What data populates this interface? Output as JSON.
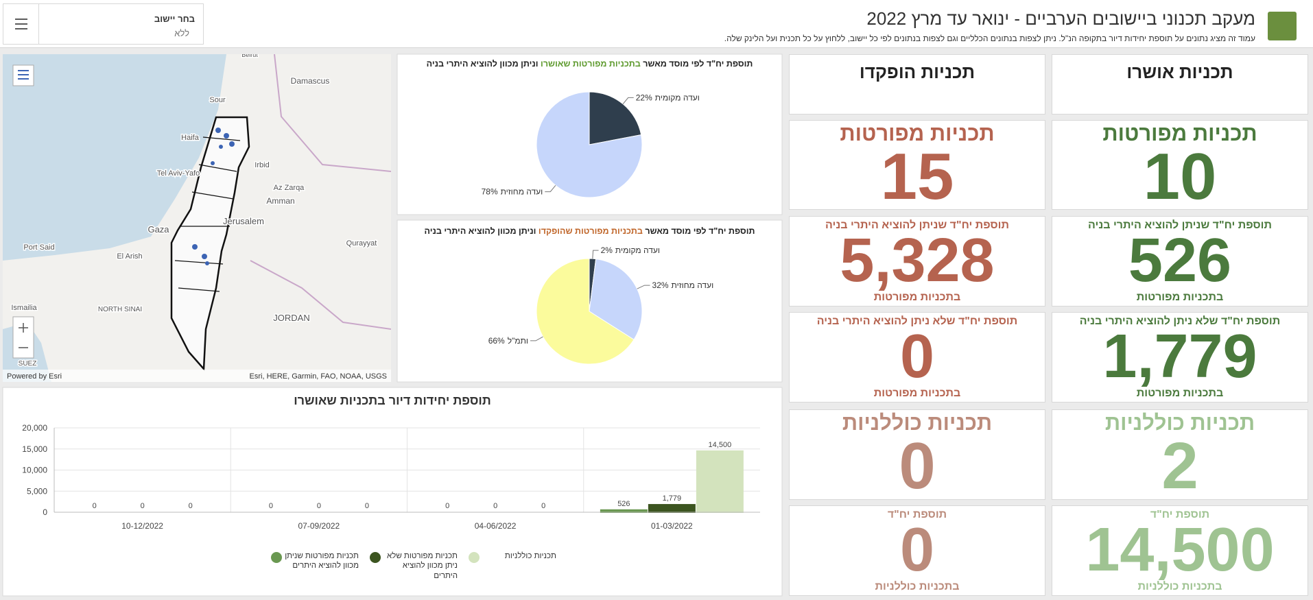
{
  "header": {
    "title": "מעקב תכנוני ביישובים הערביים - ינואר עד מרץ 2022",
    "subtitle": "עמוד זה מציג נתונים על תוספת יחידות דיור בתקופה הנ\"ל. ניתן לצפות בנתונים הכלליים וגם לצפות בנתונים לפי כל יישוב, ללחוץ על כל תכנית ועל הלינק שלה.",
    "selector_label": "בחר יישוב",
    "selector_value": "ללא"
  },
  "map": {
    "places": [
      "Beirut",
      "Damascus",
      "Sour",
      "Haifa",
      "Irbid",
      "Tel Aviv-Yafo",
      "Az Zarqa",
      "Amman",
      "Jerusalem",
      "Gaza",
      "Port Said",
      "El Arish",
      "Qurayyat",
      "Ismailia",
      "NORTH SINAI",
      "JORDAN",
      "SUEZ"
    ],
    "credits": "Powered by Esri",
    "attribution": "Esri, HERE, Garmin, FAO, NOAA, USGS"
  },
  "chart_data": [
    {
      "type": "pie",
      "title_parts": [
        "תוספת יח\"ד לפי מוסד מאשר ",
        "בתכניות מפורטות שאושרו",
        " וניתן מכוון להוציא היתרי בניה"
      ],
      "categories": [
        "ועדה מקומית",
        "ועדה מחוזית"
      ],
      "values": [
        22,
        78
      ],
      "value_labels": [
        "22%",
        "78%"
      ],
      "colors": [
        "#2f3e4d",
        "#c6d6fb"
      ]
    },
    {
      "type": "pie",
      "title_parts": [
        "תוספת יח\"ד לפי מוסד מאשר ",
        "בתכניות מפורטות שהופקדו",
        " וניתן מכוון להוציא היתרי בניה"
      ],
      "categories": [
        "ועדה מקומית",
        "ועדה מחוזית",
        "ותמ\"ל"
      ],
      "values": [
        2,
        32,
        66
      ],
      "value_labels": [
        "2%",
        "32%",
        "66%"
      ],
      "colors": [
        "#2f3e4d",
        "#c6d6fb",
        "#fbfb9c"
      ]
    },
    {
      "type": "bar",
      "title": "תוספת יחידות דיור בתכניות שאושרו",
      "categories": [
        "01-03/2022",
        "04-06/2022",
        "07-09/2022",
        "10-12/2022"
      ],
      "series": [
        {
          "name": "תכניות מפורטות שניתן מכוון להוציא היתרים",
          "color": "#6a9851",
          "values": [
            526,
            0,
            0,
            0
          ],
          "value_labels": [
            "526",
            "0",
            "0",
            "0"
          ]
        },
        {
          "name": "תכניות מפורטות שלא ניתן מכוון להוציא היתרים",
          "color": "#3c5520",
          "values": [
            1779,
            0,
            0,
            0
          ],
          "value_labels": [
            "1,779",
            "0",
            "0",
            "0"
          ]
        },
        {
          "name": "תכניות כוללניות",
          "color": "#d3e3bd",
          "values": [
            14500,
            0,
            0,
            0
          ],
          "value_labels": [
            "14,500",
            "0",
            "0",
            "0"
          ]
        }
      ],
      "ylim": [
        0,
        20000
      ],
      "yticks": [
        0,
        {
          "value": 5000,
          "label": "5,000"
        },
        {
          "value": 10000,
          "label": "10,000"
        },
        {
          "value": 15000,
          "label": "15,000"
        },
        {
          "value": 20000,
          "label": "20,000"
        }
      ],
      "grid": true
    }
  ],
  "cards": {
    "approved": [
      {
        "title": "תכניות אושרו"
      },
      {
        "title": "תכניות מפורטות",
        "value": "10",
        "color": "#4b7a3d"
      },
      {
        "title": "תוספת יח\"ד שניתן להוציא היתרי בניה",
        "value": "526",
        "subtitle": "בתכניות מפורטות",
        "color": "#4b7a3d"
      },
      {
        "title": "תוספת יח\"ד שלא ניתן להוציא היתרי בניה",
        "value": "1,779",
        "subtitle": "בתכניות מפורטות",
        "color": "#4b7a3d"
      },
      {
        "title": "תכניות כוללניות",
        "value": "2",
        "color": "#9fc392"
      },
      {
        "title": "תוספת יח\"ד",
        "value": "14,500",
        "subtitle": "בתכניות כוללניות",
        "color": "#9fc392"
      }
    ],
    "deposited": [
      {
        "title": "תכניות הופקדו"
      },
      {
        "title": "תכניות מפורטות",
        "value": "15",
        "color": "#b5634f"
      },
      {
        "title": "תוספת יח\"ד שניתן להוציא היתרי בניה",
        "value": "5,328",
        "subtitle": "בתכניות מפורטות",
        "color": "#b5634f"
      },
      {
        "title": "תוספת יח\"ד שלא ניתן להוציא היתרי בניה",
        "value": "0",
        "subtitle": "בתכניות מפורטות",
        "color": "#b5634f"
      },
      {
        "title": "תכניות כוללניות",
        "value": "0",
        "color": "#bb8b7b"
      },
      {
        "title": "תוספת יח\"ד",
        "value": "0",
        "subtitle": "בתכניות כוללניות",
        "color": "#bb8b7b"
      }
    ]
  }
}
